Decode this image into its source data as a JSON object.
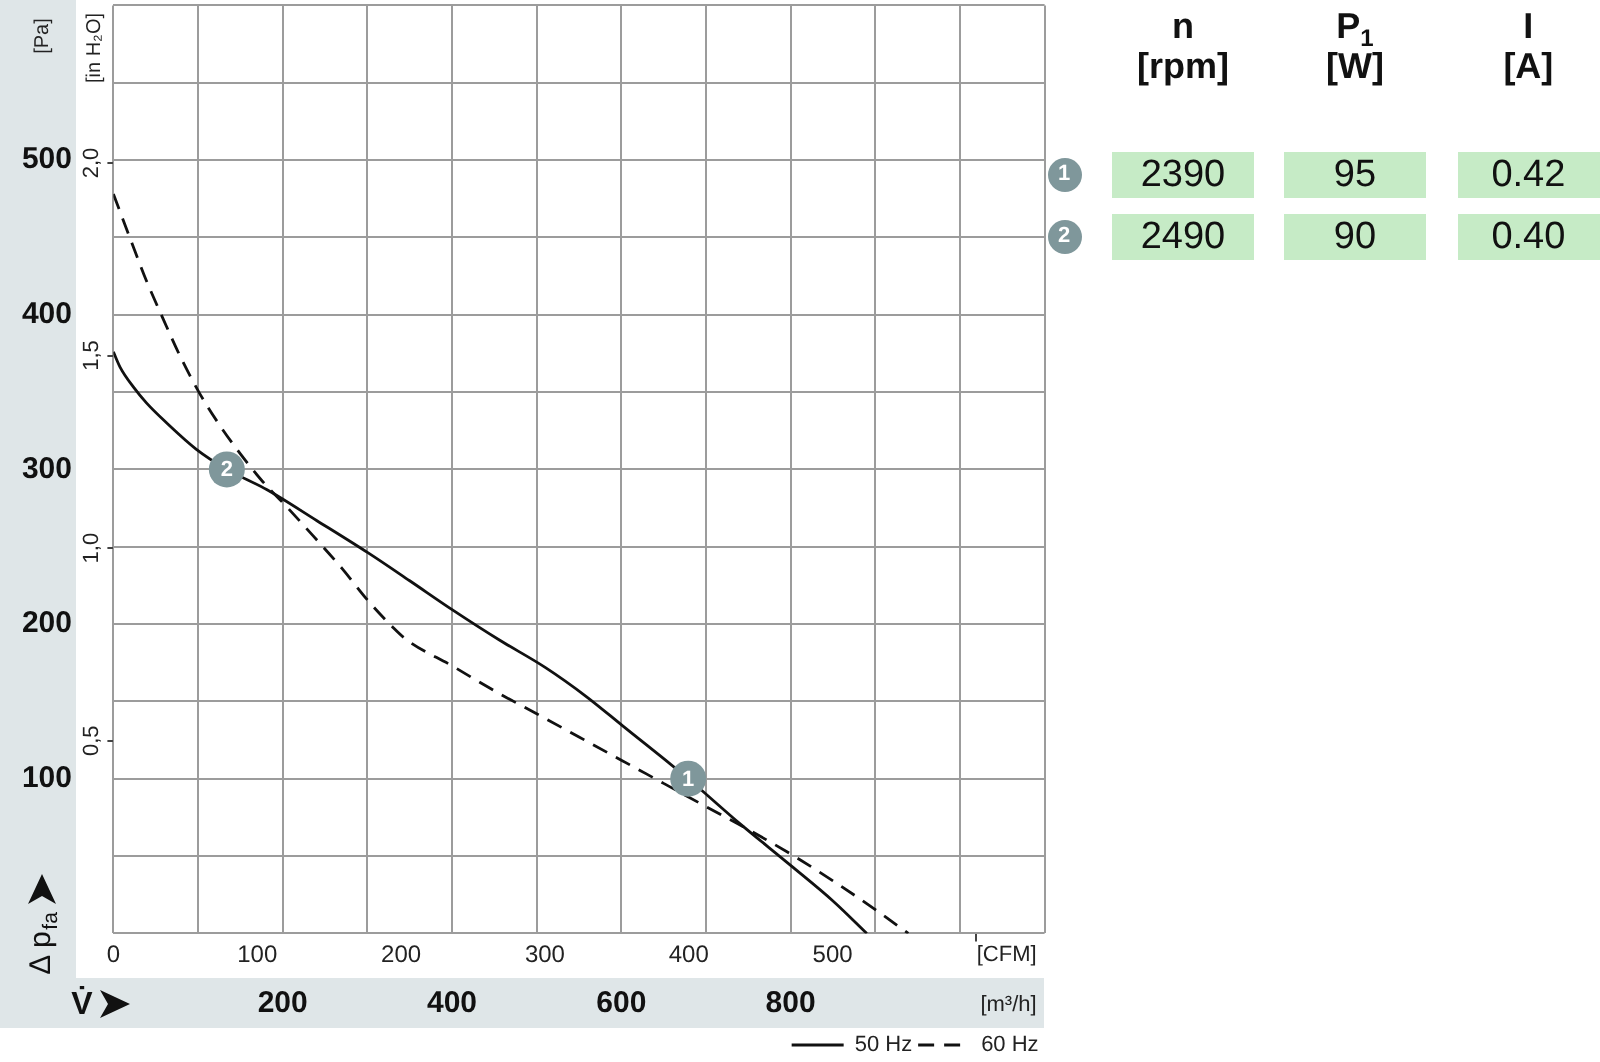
{
  "chart_data": [
    {
      "type": "line",
      "xlabel": "[m³/h]",
      "ylabel": "[Pa]",
      "x2label": "[CFM]",
      "y2label": "[in H₂O]",
      "xlim": [
        0,
        1100
      ],
      "xticks": [
        {
          "value": 0,
          "label": null
        },
        {
          "value": 100,
          "label": null
        },
        200,
        {
          "value": 300,
          "label": null
        },
        400,
        {
          "value": 500,
          "label": null
        },
        600,
        {
          "value": 700,
          "label": null
        },
        800,
        {
          "value": 900,
          "label": null
        },
        {
          "value": 1000,
          "label": null
        },
        {
          "value": 1100,
          "label": null
        }
      ],
      "x2lim": [
        0,
        647.4
      ],
      "x2ticks": [
        0,
        100,
        200,
        300,
        400,
        500,
        {
          "value": 600,
          "label": null
        }
      ],
      "ylim": [
        0,
        600
      ],
      "yticks": [
        {
          "value": 0,
          "label": null
        },
        {
          "value": 50,
          "label": null
        },
        100,
        {
          "value": 150,
          "label": null
        },
        200,
        {
          "value": 250,
          "label": null
        },
        300,
        {
          "value": 350,
          "label": null
        },
        400,
        {
          "value": 450,
          "label": null
        },
        500,
        {
          "value": 550,
          "label": null
        },
        {
          "value": 600,
          "label": null
        }
      ],
      "y2lim": [
        0,
        2.409
      ],
      "y2ticks": [
        {
          "value": 0.5,
          "label": "0,5"
        },
        {
          "value": 1,
          "label": "1,0"
        },
        {
          "value": 1.5,
          "label": "1,5"
        },
        {
          "value": 2,
          "label": "2,0"
        }
      ],
      "grid": true,
      "legend": "bottom right",
      "marker": "none",
      "series": [
        {
          "name": "50 Hz",
          "color": "#111111",
          "line_style": "solid",
          "x": [
            0,
            8,
            24,
            39,
            63,
            98,
            134,
            181,
            240,
            301,
            350,
            401,
            455,
            510,
            559,
            602,
            679,
            740,
            800,
            850,
            890
          ],
          "values": [
            376,
            366,
            353,
            343,
            330,
            313,
            300,
            287,
            267,
            246,
            228,
            209,
            190,
            172,
            153,
            134,
            100,
            71,
            44,
            21,
            0
          ]
        },
        {
          "name": "60 Hz",
          "color": "#111111",
          "line_style": "dashed",
          "x": [
            0,
            20,
            39,
            59,
            79,
            101,
            125,
            150,
            175,
            201,
            236,
            270,
            301,
            330,
            346,
            400,
            456,
            500,
            550,
            600,
            650,
            700,
            744,
            801,
            850,
            901,
            939
          ],
          "values": [
            478,
            449,
            422,
            397,
            373,
            350,
            329,
            310,
            293,
            278,
            257,
            236,
            215,
            198,
            190,
            173,
            155,
            142,
            127,
            112,
            97,
            82,
            69,
            51,
            34,
            15,
            0
          ]
        }
      ],
      "annotations": [
        "Δ p$_{fa}$",
        "V̇",
        {
          "text": "1",
          "x": 679,
          "y": 100
        },
        {
          "text": "2",
          "x": 134,
          "y": 300
        }
      ]
    },
    {
      "type": "other",
      "categories": [
        "n\n[rpm]",
        "P$_{1}$\n[W]",
        "I\n[A]"
      ],
      "series": [
        {
          "name": "1",
          "color": "#c6ebc6",
          "values": [
            2390,
            95,
            0.42
          ],
          "value_labels": [
            "2390",
            "95",
            "0.42"
          ]
        },
        {
          "name": "2",
          "color": "#c6ebc6",
          "values": [
            2490,
            90,
            0.4
          ],
          "value_labels": [
            "2490",
            "90",
            "0.40"
          ]
        }
      ]
    }
  ]
}
